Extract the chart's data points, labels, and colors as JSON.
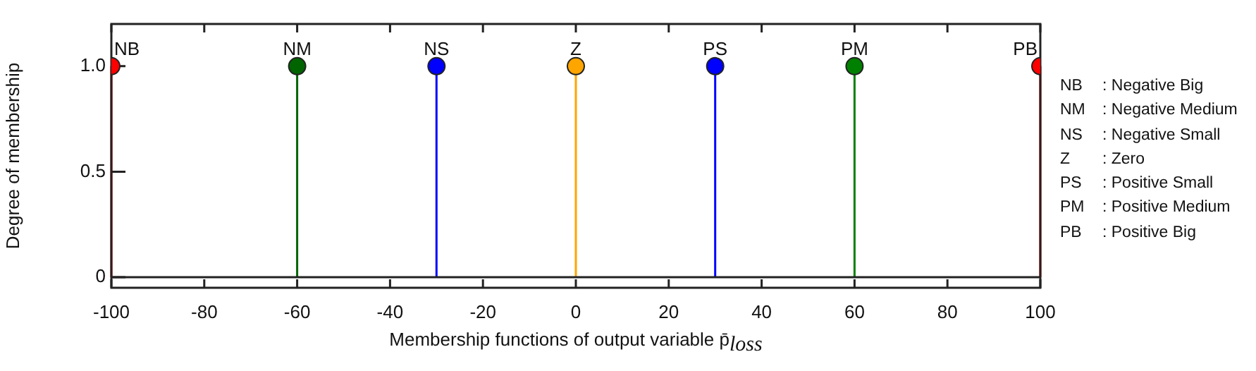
{
  "chart_data": {
    "type": "lollipop",
    "xlabel": "Membership functions of output variable p̄$_{loss}$",
    "ylabel": "Degree of membership",
    "xlim": [
      -100,
      100
    ],
    "xticks": [
      -100,
      -80,
      -60,
      -40,
      -20,
      0,
      20,
      40,
      60,
      80,
      100
    ],
    "ylim": [
      -0.05,
      1.2
    ],
    "yticks": [
      0,
      0.5,
      {
        "value": 1,
        "label": "1.0"
      }
    ],
    "legend": "top",
    "marker": "circle",
    "series": [
      {
        "name": "NB",
        "color": "#ff0000",
        "x": [
          -100
        ],
        "values": [
          1
        ]
      },
      {
        "name": "NM",
        "color": "#006400",
        "x": [
          -60
        ],
        "values": [
          1
        ]
      },
      {
        "name": "NS",
        "color": "#0000ff",
        "x": [
          -30
        ],
        "values": [
          1
        ]
      },
      {
        "name": "Z",
        "color": "#ffa500",
        "x": [
          0
        ],
        "values": [
          1
        ]
      },
      {
        "name": "PS",
        "color": "#0000ff",
        "x": [
          30
        ],
        "values": [
          1
        ]
      },
      {
        "name": "PM",
        "color": "#008000",
        "x": [
          60
        ],
        "values": [
          1
        ]
      },
      {
        "name": "PB",
        "color": "#ff0000",
        "x": [
          100
        ],
        "values": [
          1
        ]
      }
    ],
    "annotations": [
      "NB : Negative Big",
      "NM : Negative Medium",
      "NS : Negative Small",
      "Z : Zero",
      "PS : Positive Small",
      "PM : Positive Medium",
      "PB : Positive Big"
    ]
  }
}
